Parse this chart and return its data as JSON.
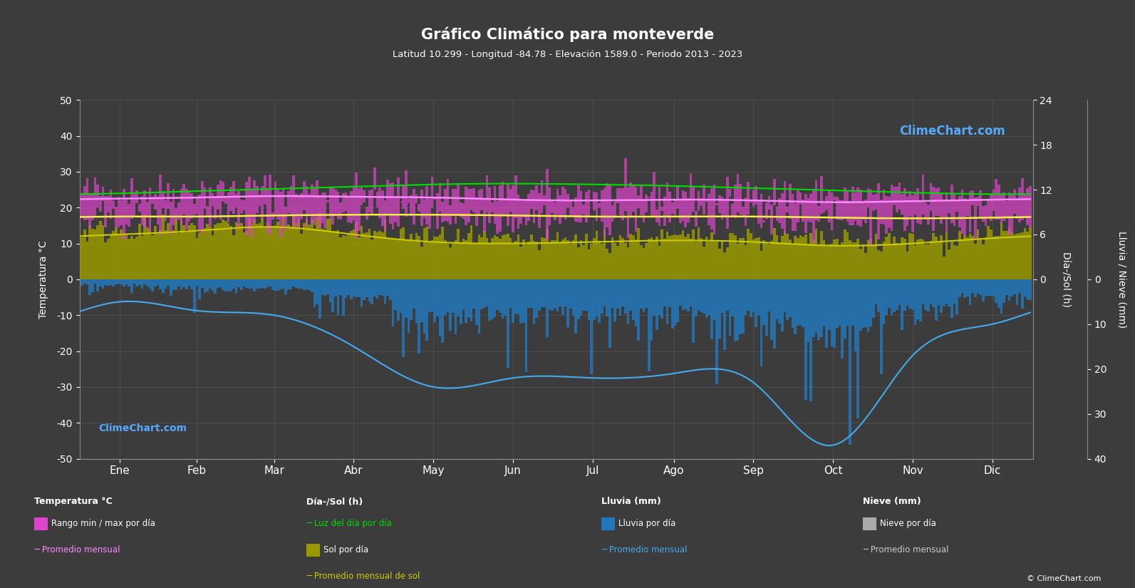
{
  "title": "Gráfico Climático para monteverde",
  "subtitle": "Latitud 10.299 - Longitud -84.78 - Elevación 1589.0 - Periodo 2013 - 2023",
  "background_color": "#3c3c3c",
  "months": [
    "Ene",
    "Feb",
    "Mar",
    "Abr",
    "May",
    "Jun",
    "Jul",
    "Ago",
    "Sep",
    "Oct",
    "Nov",
    "Dic"
  ],
  "days_per_month": [
    31,
    28,
    31,
    30,
    31,
    30,
    31,
    31,
    30,
    31,
    30,
    31
  ],
  "temp_ylim": [
    -50,
    50
  ],
  "left_yticks": [
    -50,
    -40,
    -30,
    -20,
    -10,
    0,
    10,
    20,
    30,
    40,
    50
  ],
  "sun_right_yticks": [
    0,
    6,
    12,
    18,
    24
  ],
  "rain_right_yticks": [
    0,
    10,
    20,
    30,
    40
  ],
  "temp_max_monthly": [
    24.5,
    24.8,
    25.2,
    25.0,
    24.8,
    24.2,
    24.0,
    24.2,
    24.0,
    23.5,
    23.8,
    24.2
  ],
  "temp_min_monthly": [
    16.5,
    16.5,
    16.8,
    17.2,
    17.5,
    17.2,
    17.0,
    17.0,
    16.8,
    16.5,
    16.2,
    16.3
  ],
  "temp_avg_max_monthly": [
    22.5,
    22.8,
    23.2,
    23.0,
    22.8,
    22.2,
    22.0,
    22.2,
    22.0,
    21.5,
    21.8,
    22.2
  ],
  "temp_avg_min_monthly": [
    17.5,
    17.5,
    17.8,
    18.0,
    18.0,
    17.8,
    17.5,
    17.5,
    17.5,
    17.2,
    17.0,
    17.2
  ],
  "daylight_hours_monthly": [
    11.5,
    11.8,
    12.1,
    12.4,
    12.7,
    12.8,
    12.7,
    12.5,
    12.2,
    11.9,
    11.6,
    11.4
  ],
  "sunshine_hours_monthly": [
    6.5,
    6.8,
    7.5,
    6.5,
    5.5,
    5.0,
    5.2,
    5.5,
    5.5,
    5.0,
    5.0,
    6.0
  ],
  "sunshine_avg_monthly": [
    6.0,
    6.5,
    7.0,
    6.0,
    5.0,
    4.8,
    5.0,
    5.2,
    5.0,
    4.5,
    4.8,
    5.5
  ],
  "rainfall_mm_monthly": [
    30,
    40,
    50,
    100,
    200,
    180,
    180,
    180,
    200,
    310,
    160,
    90
  ],
  "rainfall_avg_curve": [
    5,
    7,
    8,
    15,
    24,
    22,
    22,
    21,
    23,
    37,
    17,
    10
  ],
  "grid_color": "#666666",
  "temp_band_color_top": "#dd44cc",
  "temp_band_color_bot": "#cc2299",
  "sunshine_bar_color": "#999900",
  "daylight_line_color": "#00dd00",
  "sunshine_avg_line_color": "#cccc00",
  "temp_avg_max_line_color": "#ff88ff",
  "temp_avg_min_line_color": "#ffee44",
  "rain_bar_color": "#2277bb",
  "rain_avg_line_color": "#44aaee",
  "logo_color": "#55aaff",
  "copyright_text": "© ClimeChart.com"
}
